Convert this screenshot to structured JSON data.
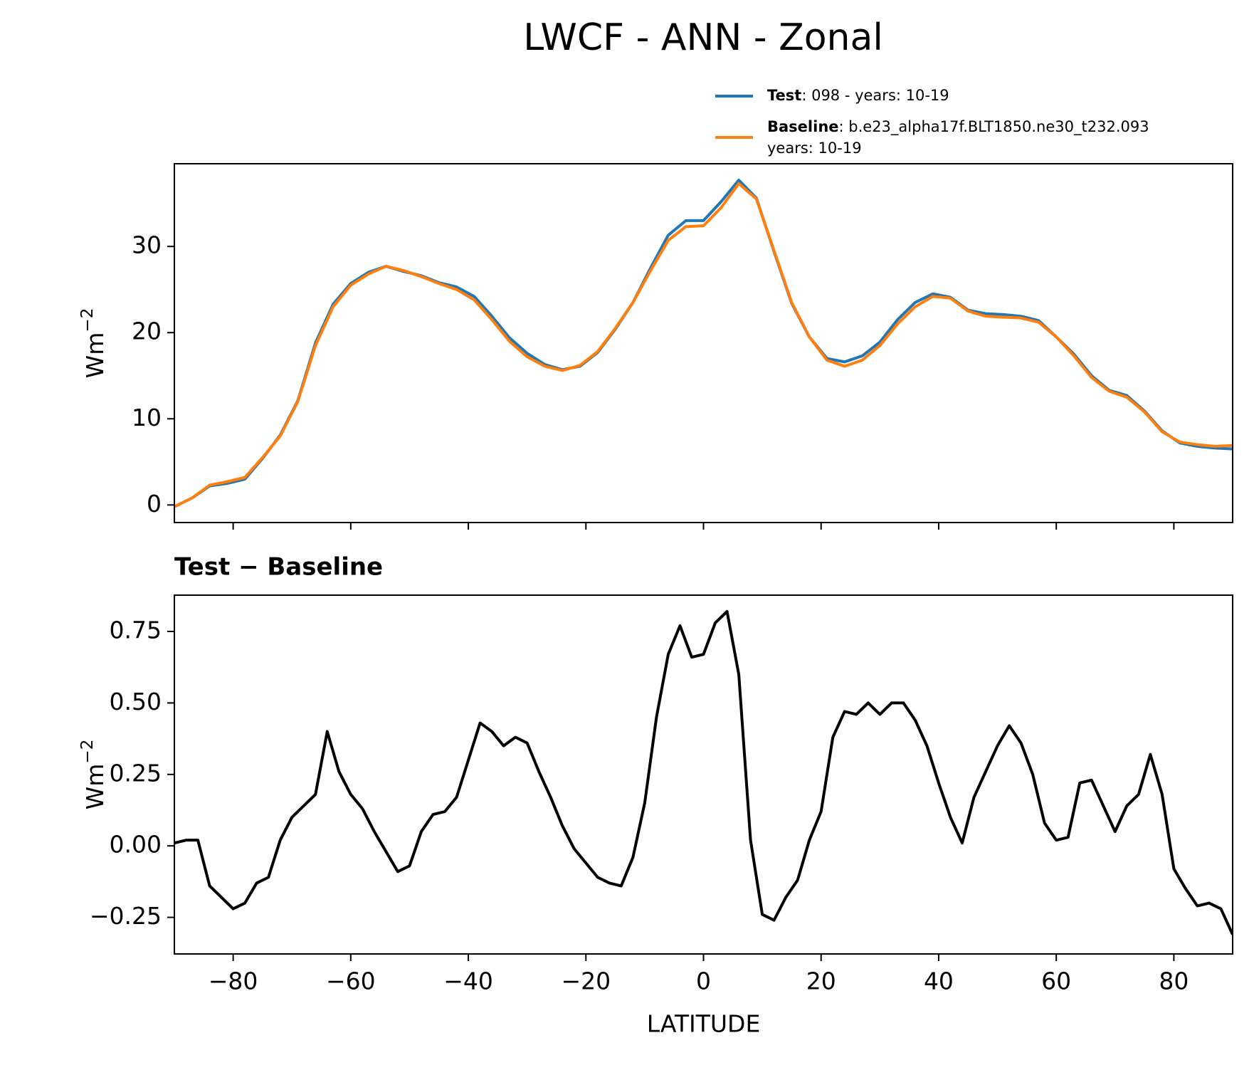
{
  "chart_data": [
    {
      "type": "line",
      "title": "LWCF - ANN - Zonal",
      "ylabel": {
        "text": "Wm",
        "superscript": "−2"
      },
      "x": [
        -90,
        -87,
        -84,
        -81,
        -78,
        -75,
        -72,
        -69,
        -66,
        -63,
        -60,
        -57,
        -54,
        -51,
        -48,
        -45,
        -42,
        -39,
        -36,
        -33,
        -30,
        -27,
        -24,
        -21,
        -18,
        -15,
        -12,
        -9,
        -6,
        -3,
        0,
        3,
        6,
        9,
        12,
        15,
        18,
        21,
        24,
        27,
        30,
        33,
        36,
        39,
        42,
        45,
        48,
        51,
        54,
        57,
        60,
        63,
        66,
        69,
        72,
        75,
        78,
        81,
        84,
        87,
        90
      ],
      "series": [
        {
          "name": "Test",
          "description": [
            ": 098 - years: 10-19"
          ],
          "color": "#1f77b4",
          "values": [
            -0.2,
            0.8,
            2.2,
            2.5,
            3.0,
            5.4,
            8.1,
            12.1,
            18.8,
            23.3,
            25.7,
            27.0,
            27.7,
            27.1,
            26.6,
            25.8,
            25.3,
            24.2,
            21.9,
            19.4,
            17.6,
            16.3,
            15.7,
            16.1,
            17.7,
            20.4,
            23.5,
            27.5,
            31.3,
            33.0,
            33.0,
            35.2,
            37.7,
            35.6,
            29.4,
            23.4,
            19.5,
            17.0,
            16.6,
            17.3,
            18.9,
            21.5,
            23.5,
            24.5,
            24.1,
            22.6,
            22.2,
            22.1,
            21.9,
            21.4,
            19.5,
            17.5,
            15.0,
            13.3,
            12.7,
            10.9,
            8.6,
            7.2,
            6.8,
            6.6,
            6.5
          ]
        },
        {
          "name": "Baseline",
          "description": [
            ": b.e23_alpha17f.BLT1850.ne30_t232.093",
            "years: 10-19"
          ],
          "color": "#ff7f0e",
          "values": [
            -0.2,
            0.8,
            2.3,
            2.7,
            3.2,
            5.5,
            8.0,
            12.0,
            18.5,
            23.0,
            25.5,
            26.8,
            27.7,
            27.2,
            26.5,
            25.7,
            25.0,
            23.8,
            21.5,
            19.0,
            17.2,
            16.1,
            15.6,
            16.2,
            17.8,
            20.5,
            23.5,
            27.2,
            30.7,
            32.3,
            32.4,
            34.5,
            37.3,
            35.5,
            29.5,
            23.5,
            19.5,
            16.8,
            16.1,
            16.8,
            18.5,
            21.0,
            23.0,
            24.2,
            24.0,
            22.5,
            21.9,
            21.8,
            21.7,
            21.2,
            19.5,
            17.3,
            14.8,
            13.2,
            12.5,
            10.8,
            8.5,
            7.3,
            7.0,
            6.8,
            6.9
          ]
        }
      ],
      "xlim": [
        -90,
        90
      ],
      "xticks": [
        -80,
        -60,
        -40,
        -20,
        0,
        20,
        40,
        60,
        80
      ],
      "ylim": [
        -2.04,
        39.6
      ],
      "yticks": [
        0,
        10,
        20,
        30
      ]
    },
    {
      "type": "line",
      "subtitle": "Test − Baseline",
      "ylabel": {
        "text": "Wm",
        "superscript": "−2"
      },
      "xlabel": "LATITUDE",
      "x": [
        -90,
        -88,
        -86,
        -84,
        -82,
        -80,
        -78,
        -76,
        -74,
        -72,
        -70,
        -68,
        -66,
        -64,
        -62,
        -60,
        -58,
        -56,
        -54,
        -52,
        -50,
        -48,
        -46,
        -44,
        -42,
        -40,
        -38,
        -36,
        -34,
        -32,
        -30,
        -28,
        -26,
        -24,
        -22,
        -20,
        -18,
        -16,
        -14,
        -12,
        -10,
        -8,
        -6,
        -4,
        -2,
        0,
        2,
        4,
        6,
        8,
        10,
        12,
        14,
        16,
        18,
        20,
        22,
        24,
        26,
        28,
        30,
        32,
        34,
        36,
        38,
        40,
        42,
        44,
        46,
        48,
        50,
        52,
        54,
        56,
        58,
        60,
        62,
        64,
        66,
        68,
        70,
        72,
        74,
        76,
        78,
        80,
        82,
        84,
        86,
        88,
        90
      ],
      "series": [
        {
          "color": "#000000",
          "values": [
            0.01,
            0.02,
            0.02,
            -0.14,
            -0.18,
            -0.22,
            -0.2,
            -0.13,
            -0.11,
            0.02,
            0.1,
            0.14,
            0.18,
            0.4,
            0.26,
            0.18,
            0.13,
            0.05,
            -0.02,
            -0.09,
            -0.07,
            0.05,
            0.11,
            0.12,
            0.17,
            0.3,
            0.43,
            0.4,
            0.35,
            0.38,
            0.36,
            0.26,
            0.17,
            0.07,
            -0.01,
            -0.06,
            -0.11,
            -0.13,
            -0.14,
            -0.04,
            0.15,
            0.45,
            0.67,
            0.77,
            0.66,
            0.67,
            0.78,
            0.82,
            0.6,
            0.02,
            -0.24,
            -0.26,
            -0.18,
            -0.12,
            0.02,
            0.12,
            0.38,
            0.47,
            0.46,
            0.5,
            0.46,
            0.5,
            0.5,
            0.44,
            0.35,
            0.22,
            0.1,
            0.01,
            0.17,
            0.26,
            0.35,
            0.42,
            0.36,
            0.25,
            0.08,
            0.02,
            0.03,
            0.22,
            0.23,
            0.14,
            0.05,
            0.14,
            0.18,
            0.32,
            0.18,
            -0.08,
            -0.15,
            -0.21,
            -0.2,
            -0.22,
            -0.31
          ]
        }
      ],
      "xlim": [
        -90,
        90
      ],
      "xticks": [
        {
          "value": -80,
          "label": "−80"
        },
        {
          "value": -60,
          "label": "−60"
        },
        {
          "value": -40,
          "label": "−40"
        },
        {
          "value": -20,
          "label": "−20"
        },
        0,
        20,
        40,
        60,
        80
      ],
      "ylim": [
        -0.378,
        0.877
      ],
      "yticks": [
        {
          "value": -0.25,
          "label": "−0.25"
        },
        {
          "value": 0,
          "label": "0.00"
        },
        0.25,
        {
          "value": 0.5,
          "label": "0.50"
        },
        0.75
      ]
    }
  ]
}
